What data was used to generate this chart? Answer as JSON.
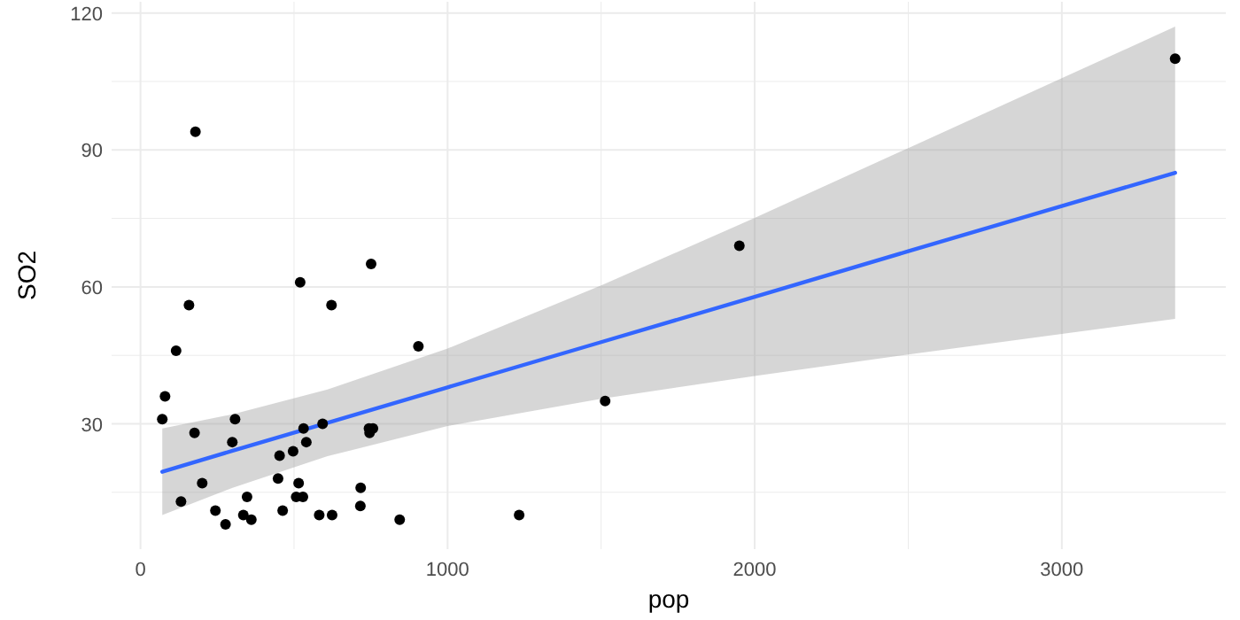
{
  "chart_data": {
    "type": "scatter",
    "xlabel": "pop",
    "ylabel": "SO2",
    "xlim": [
      -94,
      3534
    ],
    "ylim": [
      2.55,
      122.45
    ],
    "xticks": [
      0,
      {
        "value": 500,
        "label": null
      },
      1000,
      {
        "value": 1500,
        "label": null
      },
      2000,
      {
        "value": 2500,
        "label": null
      },
      3000
    ],
    "yticks": [
      {
        "value": 15,
        "label": null
      },
      30,
      {
        "value": 45,
        "label": null
      },
      60,
      {
        "value": 75,
        "label": null
      },
      90,
      {
        "value": 105,
        "label": null
      },
      120
    ],
    "grid": true,
    "marker": "circle",
    "series": [
      {
        "color": "#000000",
        "x": [
          116,
          244,
          497,
          905,
          463,
          71,
          3369,
          453,
          751,
          540,
          844,
          515,
          201,
          1513,
          158,
          1233,
          746,
          529,
          507,
          132,
          593,
          624,
          335,
          717,
          744,
          448,
          361,
          308,
          347,
          1950,
          582,
          520,
          179,
          299,
          176,
          716,
          531,
          622,
          757,
          277,
          80
        ],
        "values": [
          46,
          11,
          24,
          47,
          11,
          31,
          110,
          23,
          65,
          26,
          9,
          17,
          17,
          35,
          56,
          10,
          28,
          14,
          14,
          13,
          30,
          10,
          10,
          16,
          29,
          18,
          9,
          31,
          14,
          69,
          10,
          61,
          94,
          26,
          28,
          12,
          29,
          56,
          29,
          8,
          36
        ]
      },
      {
        "type": "line",
        "color": "#3366ff",
        "marker": "none",
        "x": [
          71,
          300,
          609,
          1000,
          1500,
          2000,
          2500,
          3000,
          3369
        ],
        "values": [
          19.5,
          24.1,
          30.2,
          38.0,
          47.9,
          57.8,
          67.8,
          77.7,
          85.0
        ],
        "lower": [
          10.0,
          16.0,
          22.9,
          29.5,
          35.5,
          40.5,
          45.2,
          49.7,
          53.0
        ],
        "upper": [
          29.0,
          32.1,
          37.5,
          46.5,
          60.3,
          75.1,
          90.4,
          105.7,
          117.0
        ]
      }
    ]
  }
}
